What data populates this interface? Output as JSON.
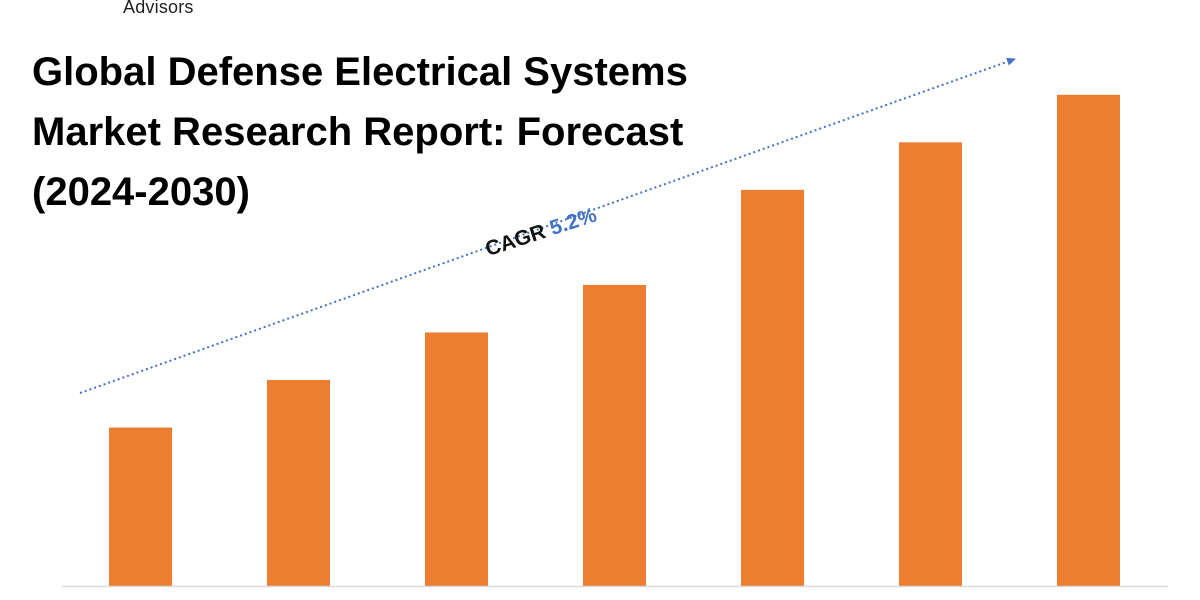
{
  "brand": {
    "name": "Advisors"
  },
  "title_lines": [
    "Global Defense Electrical Systems",
    "Market Research Report: Forecast",
    "(2024-2030)"
  ],
  "colors": {
    "bar": "#ed7d31",
    "trend": "#4472c4",
    "axis": "#d9d9d9"
  },
  "cagr": {
    "label": "CAGR",
    "value": "5.2%"
  },
  "chart_data": {
    "type": "bar",
    "categories": [
      "",
      "",
      "",
      "",
      "",
      "",
      ""
    ],
    "values": [
      30,
      39,
      48,
      57,
      75,
      84,
      93
    ],
    "title": "Global Defense Electrical Systems Market Research Report: Forecast (2024-2030)",
    "xlabel": "",
    "ylabel": "",
    "ylim": [
      0,
      110
    ],
    "grid": false,
    "legend": "none",
    "annotations": [
      "CAGR 5.2%"
    ]
  }
}
